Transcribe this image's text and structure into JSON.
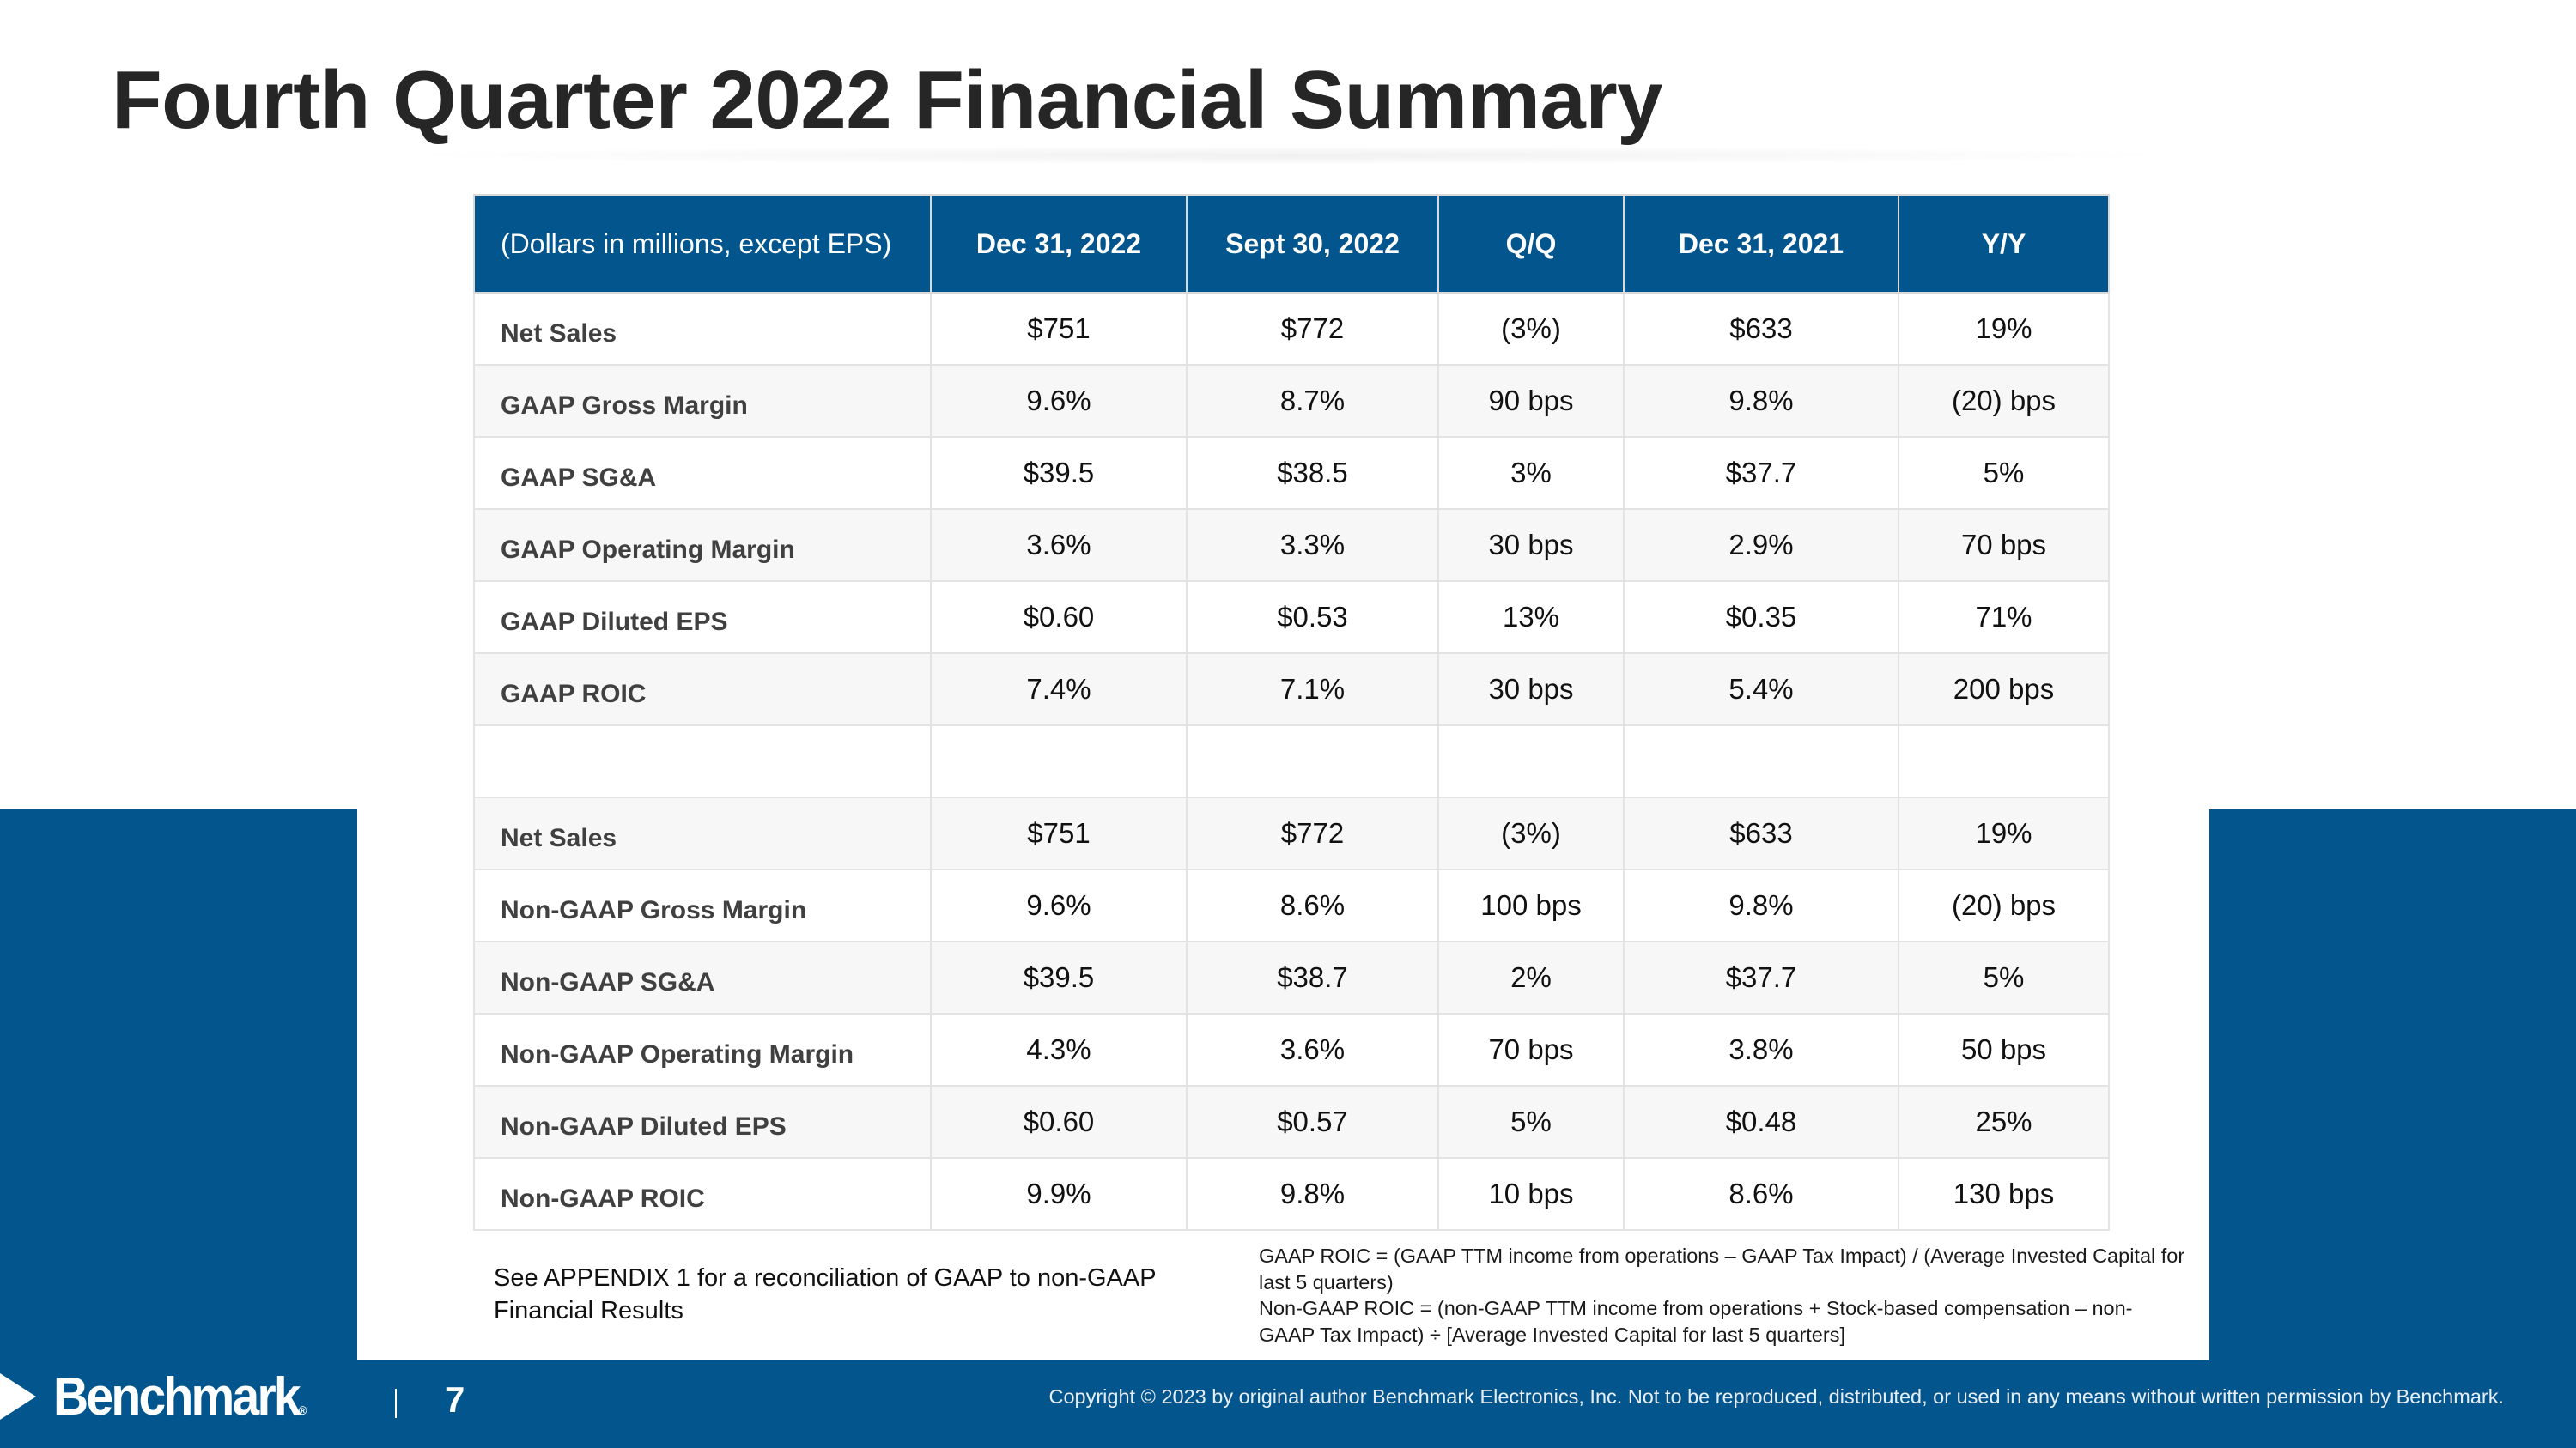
{
  "title": "Fourth Quarter 2022 Financial Summary",
  "table": {
    "headers": [
      "(Dollars in millions, except EPS)",
      "Dec 31, 2022",
      "Sept 30, 2022",
      "Q/Q",
      "Dec 31, 2021",
      "Y/Y"
    ],
    "rows": [
      [
        "Net Sales",
        "$751",
        "$772",
        "(3%)",
        "$633",
        "19%"
      ],
      [
        "GAAP Gross Margin",
        "9.6%",
        "8.7%",
        "90 bps",
        "9.8%",
        "(20) bps"
      ],
      [
        "GAAP SG&A",
        "$39.5",
        "$38.5",
        "3%",
        "$37.7",
        "5%"
      ],
      [
        "GAAP Operating Margin",
        "3.6%",
        "3.3%",
        "30 bps",
        "2.9%",
        "70 bps"
      ],
      [
        "GAAP Diluted EPS",
        "$0.60",
        "$0.53",
        "13%",
        "$0.35",
        "71%"
      ],
      [
        "GAAP ROIC",
        "7.4%",
        "7.1%",
        "30 bps",
        "5.4%",
        "200 bps"
      ],
      [
        "",
        "",
        "",
        "",
        "",
        ""
      ],
      [
        "Net Sales",
        "$751",
        "$772",
        "(3%)",
        "$633",
        "19%"
      ],
      [
        "Non-GAAP Gross Margin",
        "9.6%",
        "8.6%",
        "100 bps",
        "9.8%",
        "(20) bps"
      ],
      [
        "Non-GAAP SG&A",
        "$39.5",
        "$38.7",
        "2%",
        "$37.7",
        "5%"
      ],
      [
        "Non-GAAP Operating Margin",
        "4.3%",
        "3.6%",
        "70 bps",
        "3.8%",
        "50 bps"
      ],
      [
        "Non-GAAP Diluted EPS",
        "$0.60",
        "$0.57",
        "5%",
        "$0.48",
        "25%"
      ],
      [
        "Non-GAAP ROIC",
        "9.9%",
        "9.8%",
        "10 bps",
        "8.6%",
        "130 bps"
      ]
    ]
  },
  "appendix_note": "See APPENDIX 1 for a reconciliation of GAAP to non-GAAP Financial Results",
  "footnotes": [
    "GAAP ROIC = (GAAP TTM income from operations – GAAP Tax Impact) / (Average Invested Capital for last 5 quarters)",
    "Non-GAAP ROIC = (non-GAAP TTM income from operations + Stock-based compensation – non-GAAP Tax Impact) ÷ [Average Invested Capital for last 5 quarters]"
  ],
  "footer": {
    "logo": "Benchmark",
    "page_number": "7",
    "copyright": "Copyright © 2023 by original author Benchmark Electronics, Inc. Not to be reproduced, distributed, or used in any means without written permission by Benchmark."
  },
  "colors": {
    "brand_blue": "#03558e",
    "stripe": "#f7f7f7"
  }
}
